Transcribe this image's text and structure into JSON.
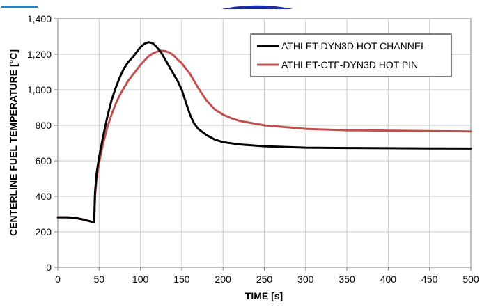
{
  "chart_data": {
    "type": "line",
    "xlabel": "TIME [s]",
    "ylabel": "CENTERLINE FUEL TEMPERATURE [°C]",
    "xlim": [
      0,
      500
    ],
    "ylim": [
      0,
      1400
    ],
    "x_ticks": [
      "0",
      "50",
      "100",
      "150",
      "200",
      "250",
      "300",
      "350",
      "400",
      "450",
      "500"
    ],
    "y_ticks": [
      "0",
      "200",
      "400",
      "600",
      "800",
      "1,000",
      "1,200",
      "1,400"
    ],
    "grid": true,
    "legend_position": "top-right",
    "series": [
      {
        "name": "ATHLET-DYN3D HOT CHANNEL",
        "color": "#000000",
        "points": [
          [
            0,
            282
          ],
          [
            10,
            282
          ],
          [
            20,
            280
          ],
          [
            30,
            270
          ],
          [
            40,
            258
          ],
          [
            44,
            255
          ],
          [
            45,
            420
          ],
          [
            47,
            530
          ],
          [
            50,
            620
          ],
          [
            55,
            740
          ],
          [
            60,
            850
          ],
          [
            65,
            940
          ],
          [
            70,
            1010
          ],
          [
            75,
            1070
          ],
          [
            80,
            1120
          ],
          [
            85,
            1155
          ],
          [
            90,
            1180
          ],
          [
            95,
            1210
          ],
          [
            100,
            1240
          ],
          [
            105,
            1260
          ],
          [
            110,
            1268
          ],
          [
            115,
            1262
          ],
          [
            120,
            1240
          ],
          [
            125,
            1210
          ],
          [
            130,
            1170
          ],
          [
            135,
            1130
          ],
          [
            140,
            1090
          ],
          [
            145,
            1050
          ],
          [
            150,
            1000
          ],
          [
            155,
            930
          ],
          [
            160,
            860
          ],
          [
            165,
            810
          ],
          [
            170,
            780
          ],
          [
            180,
            745
          ],
          [
            190,
            720
          ],
          [
            200,
            705
          ],
          [
            220,
            692
          ],
          [
            250,
            682
          ],
          [
            300,
            674
          ],
          [
            350,
            672
          ],
          [
            400,
            671
          ],
          [
            450,
            670
          ],
          [
            500,
            669
          ]
        ]
      },
      {
        "name": "ATHLET-CTF-DYN3D HOT PIN",
        "color": "#c0504d",
        "points": [
          [
            0,
            282
          ],
          [
            10,
            282
          ],
          [
            20,
            280
          ],
          [
            30,
            270
          ],
          [
            40,
            258
          ],
          [
            44,
            255
          ],
          [
            45,
            400
          ],
          [
            47,
            500
          ],
          [
            50,
            590
          ],
          [
            55,
            700
          ],
          [
            60,
            790
          ],
          [
            65,
            860
          ],
          [
            70,
            920
          ],
          [
            75,
            970
          ],
          [
            80,
            1010
          ],
          [
            85,
            1050
          ],
          [
            90,
            1080
          ],
          [
            95,
            1110
          ],
          [
            100,
            1140
          ],
          [
            105,
            1165
          ],
          [
            110,
            1190
          ],
          [
            115,
            1205
          ],
          [
            120,
            1215
          ],
          [
            125,
            1220
          ],
          [
            130,
            1218
          ],
          [
            135,
            1210
          ],
          [
            140,
            1195
          ],
          [
            145,
            1170
          ],
          [
            150,
            1150
          ],
          [
            155,
            1120
          ],
          [
            160,
            1090
          ],
          [
            165,
            1050
          ],
          [
            170,
            1010
          ],
          [
            180,
            940
          ],
          [
            190,
            890
          ],
          [
            200,
            860
          ],
          [
            210,
            840
          ],
          [
            220,
            825
          ],
          [
            250,
            800
          ],
          [
            300,
            780
          ],
          [
            350,
            772
          ],
          [
            400,
            770
          ],
          [
            450,
            768
          ],
          [
            500,
            766
          ]
        ]
      }
    ]
  }
}
